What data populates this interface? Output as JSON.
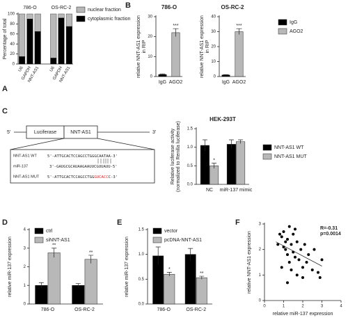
{
  "chart_data": [
    {
      "type": "stacked_bar",
      "panel": "A",
      "ylabel": "Percentage of total",
      "groups": [
        "786-O",
        "OS-RC-2"
      ],
      "categories": [
        "U6",
        "GAPDH",
        "NNT-AS1",
        "U6",
        "GAPDH",
        "NNT-AS1"
      ],
      "series": [
        {
          "name": "cytoplasmic fraction",
          "color": "#000000",
          "values": [
            15,
            90,
            65,
            12,
            92,
            75
          ]
        },
        {
          "name": "nuclear fraction",
          "color": "#b8b8b8",
          "values": [
            85,
            10,
            35,
            88,
            8,
            25
          ]
        }
      ],
      "legend_order": [
        1,
        0
      ],
      "ylim": [
        0,
        100
      ],
      "yticks": [
        0,
        20,
        40,
        60,
        80,
        100
      ]
    },
    {
      "type": "bar",
      "panel": "B",
      "title": "786-O",
      "ylabel": [
        "relative NNT-AS1 expression",
        "in RIP"
      ],
      "categories": [
        "IgG",
        "AGO2"
      ],
      "values": [
        1,
        22
      ],
      "errors": [
        0.3,
        2
      ],
      "colors": [
        "#000000",
        "#b8b8b8"
      ],
      "annotations": [
        null,
        "***"
      ],
      "ylim": [
        0,
        30
      ],
      "yticks": [
        0,
        10,
        20,
        30
      ]
    },
    {
      "type": "bar",
      "title": "OS-RC-2",
      "ylabel": [
        "relative NNT-AS1 expression",
        "in RIP"
      ],
      "categories": [
        "IgG",
        "AGO2"
      ],
      "values": [
        1,
        30
      ],
      "errors": [
        0.3,
        2
      ],
      "colors": [
        "#000000",
        "#b8b8b8"
      ],
      "annotations": [
        null,
        "***"
      ],
      "ylim": [
        0,
        40
      ],
      "yticks": [
        0,
        10,
        20,
        30,
        40
      ],
      "legend": [
        {
          "name": "IgG",
          "color": "#000000"
        },
        {
          "name": "AGO2",
          "color": "#b8b8b8"
        }
      ]
    },
    {
      "type": "grouped_bar",
      "title": "HEK-293T",
      "ylabel": [
        "Relative luciferase activity",
        "(normalized to Renilla luciferase)"
      ],
      "categories": [
        "NC",
        "miR-137 mimic"
      ],
      "series": [
        {
          "name": "NNT-AS1 WT",
          "color": "#000000",
          "values": [
            1.05,
            1.08
          ],
          "errors": [
            0.15,
            0.12
          ],
          "annotations": [
            null,
            null
          ]
        },
        {
          "name": "NNT-AS1 MUT",
          "color": "#b8b8b8",
          "values": [
            0.5,
            1.15
          ],
          "errors": [
            0.07,
            0.05
          ],
          "annotations": [
            "*",
            null
          ]
        }
      ],
      "ylim": [
        0,
        1.5
      ],
      "yticks": [
        {
          "value": 0,
          "label": "0.0"
        },
        {
          "value": 0.5,
          "label": "0.5"
        },
        {
          "value": 1,
          "label": "1.0"
        },
        {
          "value": 1.5,
          "label": "1.5"
        }
      ]
    },
    {
      "type": "grouped_bar",
      "panel": "D",
      "ylabel": "relative miR-137 expression",
      "categories": [
        "786-O",
        "OS-RC-2"
      ],
      "series": [
        {
          "name": "ctrl",
          "color": "#000000",
          "values": [
            1.0,
            1.0
          ],
          "errors": [
            0.15,
            0.1
          ],
          "annotations": [
            null,
            null
          ]
        },
        {
          "name": "siNNT-AS1",
          "color": "#b8b8b8",
          "values": [
            2.75,
            2.4
          ],
          "errors": [
            0.25,
            0.22
          ],
          "annotations": [
            "**",
            "**"
          ]
        }
      ],
      "ylim": [
        0,
        4
      ],
      "yticks": [
        0,
        1,
        2,
        3,
        4
      ]
    },
    {
      "type": "grouped_bar",
      "panel": "E",
      "ylabel": "relative miR-137 expression",
      "categories": [
        "786-O",
        "OS-RC-2"
      ],
      "series": [
        {
          "name": "vector",
          "color": "#000000",
          "values": [
            0.97,
            1.0
          ],
          "errors": [
            0.18,
            0.12
          ],
          "annotations": [
            null,
            null
          ]
        },
        {
          "name": "pcDNA-NNT-AS1",
          "color": "#b8b8b8",
          "values": [
            0.6,
            0.53
          ],
          "errors": [
            0.04,
            0.03
          ],
          "annotations": [
            "*",
            "**"
          ]
        }
      ],
      "ylim": [
        0,
        1.5
      ],
      "yticks": [
        {
          "value": 0,
          "label": "0.0"
        },
        {
          "value": 0.5,
          "label": "0.5"
        },
        {
          "value": 1,
          "label": "1.0"
        },
        {
          "value": 1.5,
          "label": "1.5"
        }
      ]
    },
    {
      "type": "scatter",
      "panel": "F",
      "xlabel": "relative miR-137 expression",
      "ylabel": "relative NNT-AS1 expression",
      "annotations": [
        "R=-0.31",
        "p=0.0014"
      ],
      "color": "#000000",
      "x": [
        0.7,
        0.8,
        0.9,
        1.0,
        1.0,
        1.1,
        1.1,
        1.2,
        1.2,
        1.3,
        1.3,
        1.4,
        1.4,
        1.5,
        1.5,
        1.6,
        1.6,
        1.7,
        1.7,
        1.8,
        1.9,
        2.0,
        2.1,
        2.2,
        2.3,
        2.5,
        2.6,
        2.8,
        2.9,
        3.0,
        1.2,
        0.9,
        2.0
      ],
      "y": [
        2.2,
        2.6,
        2.5,
        2.7,
        2.1,
        2.0,
        2.3,
        1.8,
        2.4,
        2.9,
        1.5,
        2.2,
        1.2,
        2.6,
        1.9,
        2.8,
        1.7,
        2.3,
        1.0,
        1.6,
        2.0,
        1.3,
        2.2,
        1.5,
        1.8,
        1.2,
        2.0,
        1.1,
        0.9,
        1.6,
        0.7,
        1.3,
        0.9
      ],
      "fit": {
        "x": [
          0.6,
          3.0
        ],
        "y": [
          2.3,
          1.35
        ]
      },
      "xlim": [
        0,
        4
      ],
      "xticks": [
        0,
        1,
        2,
        3,
        4
      ],
      "ylim": [
        0,
        3
      ],
      "yticks": [
        0,
        1,
        2,
        3
      ]
    }
  ],
  "diagram": {
    "panel": "C",
    "five_prime": "5'",
    "three_prime": "3'",
    "boxes": [
      "Luciferase",
      "NNT-AS1"
    ],
    "rows": [
      {
        "label": "NNT-AS1 WT",
        "sequence": [
          "5'-ATTGCACTCCAGCCTGGGCAATAA-3'"
        ]
      },
      {
        "label": "miR-137",
        "sequence": [
          "3'-GAUGCGCAUAAGAAUUCGUUAUU-5'"
        ]
      },
      {
        "label": "NNT-AS1 MUT",
        "sequence": [
          "5'-ATTGCACTCCAGCCTGG",
          "GUCACC",
          "C-3'"
        ]
      }
    ]
  }
}
